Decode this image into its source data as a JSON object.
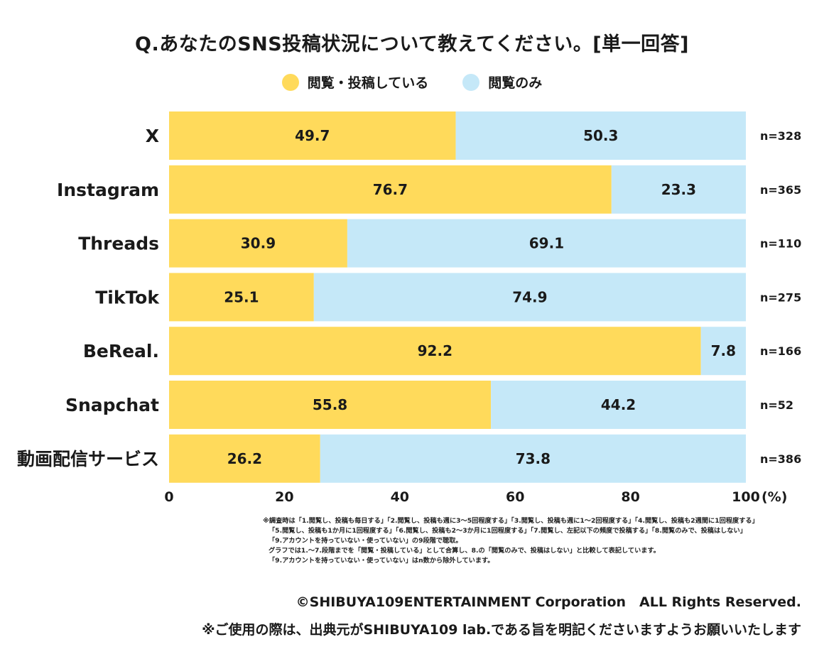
{
  "title": "Q.あなたのSNS投稿状況について教えてください。[単一回答]",
  "legend": {
    "post": "閲覧・投稿している",
    "view": "閲覧のみ"
  },
  "colors": {
    "post": "#FFDA5B",
    "view": "#C5E8F8",
    "text": "#1a1a1a"
  },
  "chart_data": {
    "type": "bar",
    "orientation": "horizontal",
    "stacked": true,
    "title": "Q.あなたのSNS投稿状況について教えてください。[単一回答]",
    "categories": [
      "X",
      "Instagram",
      "Threads",
      "TikTok",
      "BeReal.",
      "Snapchat",
      "動画配信サービス"
    ],
    "series": [
      {
        "name": "閲覧・投稿している",
        "values": [
          49.7,
          76.7,
          30.9,
          25.1,
          92.2,
          55.8,
          26.2
        ]
      },
      {
        "name": "閲覧のみ",
        "values": [
          50.3,
          23.3,
          69.1,
          74.9,
          7.8,
          44.2,
          73.8
        ]
      }
    ],
    "n_labels": [
      "n=328",
      "n=365",
      "n=110",
      "n=275",
      "n=166",
      "n=52",
      "n=386"
    ],
    "xticks": [
      "0",
      "20",
      "40",
      "60",
      "80",
      "100"
    ],
    "xtick_values": [
      0,
      20,
      40,
      60,
      80,
      100
    ],
    "xunit": "(%)",
    "xlim": [
      0,
      100
    ],
    "legend_position": "top-center"
  },
  "notes": [
    "※調査時は「1.閲覧し、投稿も毎日する」「2.閲覧し、投稿も週に3～5回程度する」「3.閲覧し、投稿も週に1～2回程度する」「4.閲覧し、投稿も2週間に1回程度する」",
    "「5.閲覧し、投稿も1か月に1回程度する」「6.閲覧し、投稿も2～3か月に1回程度する」「7.閲覧し、左記以下の頻度で投稿する」「8.閲覧のみで、投稿はしない」",
    "「9.アカウントを持っていない・使っていない」の9段階で聴取。",
    "グラフでは1.～7.段階までを「閲覧・投稿している」として合算し、8.の「閲覧のみで、投稿はしない」と比較して表記しています。",
    "「9.アカウントを持っていない・使っていない」はn数から除外しています。"
  ],
  "footer": {
    "copyright": "©SHIBUYA109ENTERTAINMENT Corporation　ALL Rights Reserved.",
    "usage": "※ご使用の際は、出典元がSHIBUYA109 lab.である旨を明記くださいますようお願いいたします"
  }
}
